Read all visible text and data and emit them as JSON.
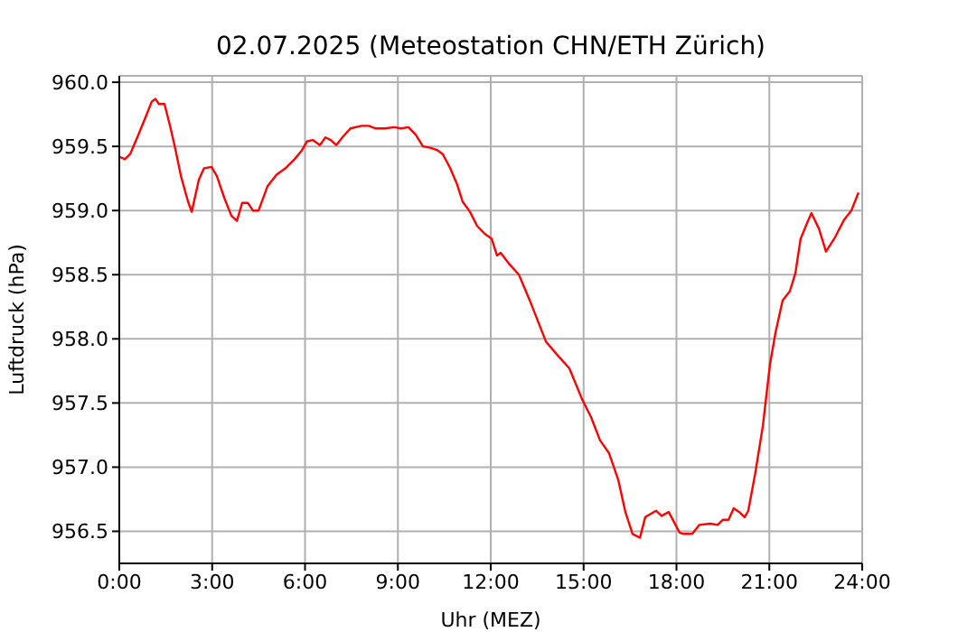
{
  "chart_data": {
    "type": "line",
    "title": "02.07.2025  (Meteostation CHN/ETH Zürich)",
    "xlabel": "Uhr (MEZ)",
    "ylabel": "Luftdruck (hPa)",
    "grid": true,
    "legend": false,
    "marker": "none",
    "line_style": "solid",
    "xlim": [
      0,
      24
    ],
    "xticks": [
      {
        "value": 0,
        "label": "0:00"
      },
      {
        "value": 3,
        "label": "3:00"
      },
      {
        "value": 6,
        "label": "6:00"
      },
      {
        "value": 9,
        "label": "9:00"
      },
      {
        "value": 12,
        "label": "12:00"
      },
      {
        "value": 15,
        "label": "15:00"
      },
      {
        "value": 18,
        "label": "18:00"
      },
      {
        "value": 21,
        "label": "21:00"
      },
      {
        "value": 24,
        "label": "24:00"
      }
    ],
    "ylim": [
      956.25,
      960.05
    ],
    "yticks": [
      {
        "value": 956.5,
        "label": "956.5"
      },
      {
        "value": 957,
        "label": "957.0"
      },
      {
        "value": 957.5,
        "label": "957.5"
      },
      {
        "value": 958,
        "label": "958.0"
      },
      {
        "value": 958.5,
        "label": "958.5"
      },
      {
        "value": 959,
        "label": "959.0"
      },
      {
        "value": 959.5,
        "label": "959.5"
      },
      {
        "value": 960,
        "label": "960.0"
      }
    ],
    "x": [
      0,
      0.18,
      0.35,
      0.58,
      0.82,
      1.05,
      1.17,
      1.28,
      1.46,
      1.64,
      1.81,
      1.99,
      2.22,
      2.34,
      2.57,
      2.74,
      2.98,
      3.15,
      3.39,
      3.62,
      3.8,
      3.97,
      4.15,
      4.32,
      4.5,
      4.79,
      5.08,
      5.37,
      5.66,
      5.9,
      6.07,
      6.25,
      6.48,
      6.66,
      6.83,
      7.01,
      7.24,
      7.47,
      7.82,
      8.06,
      8.29,
      8.58,
      8.88,
      9.11,
      9.34,
      9.58,
      9.81,
      10.04,
      10.28,
      10.45,
      10.69,
      10.92,
      11.09,
      11.33,
      11.56,
      11.8,
      12.03,
      12.2,
      12.32,
      12.61,
      12.91,
      13.26,
      13.78,
      14.13,
      14.54,
      14.95,
      15.24,
      15.53,
      15.82,
      16.12,
      16.35,
      16.58,
      16.82,
      16.99,
      17.34,
      17.52,
      17.75,
      18.1,
      18.22,
      18.51,
      18.74,
      19.09,
      19.33,
      19.5,
      19.68,
      19.85,
      20.03,
      20.2,
      20.32,
      20.55,
      20.79,
      21.02,
      21.2,
      21.43,
      21.66,
      21.84,
      22.01,
      22.25,
      22.36,
      22.6,
      22.83,
      23.12,
      23.42,
      23.65,
      23.88
    ],
    "series": [
      {
        "color": "#ff0000",
        "values": [
          959.42,
          959.4,
          959.44,
          959.57,
          959.71,
          959.85,
          959.87,
          959.83,
          959.83,
          959.66,
          959.48,
          959.27,
          959.07,
          958.99,
          959.24,
          959.33,
          959.34,
          959.27,
          959.1,
          958.96,
          958.92,
          959.06,
          959.06,
          959.0,
          959.0,
          959.19,
          959.28,
          959.33,
          959.4,
          959.47,
          959.54,
          959.55,
          959.51,
          959.57,
          959.55,
          959.51,
          959.58,
          959.64,
          959.66,
          959.66,
          959.64,
          959.64,
          959.65,
          959.64,
          959.65,
          959.59,
          959.5,
          959.49,
          959.47,
          959.44,
          959.33,
          959.2,
          959.07,
          958.99,
          958.88,
          958.82,
          958.78,
          958.65,
          958.67,
          958.58,
          958.5,
          958.3,
          957.98,
          957.88,
          957.77,
          957.53,
          957.39,
          957.21,
          957.11,
          956.9,
          956.65,
          956.48,
          956.45,
          956.61,
          956.66,
          956.62,
          956.65,
          956.49,
          956.48,
          956.48,
          956.55,
          956.56,
          956.55,
          956.59,
          956.59,
          956.68,
          956.65,
          956.61,
          956.66,
          956.96,
          957.32,
          957.8,
          958.05,
          958.3,
          958.37,
          958.51,
          958.78,
          958.92,
          958.98,
          958.86,
          958.68,
          958.79,
          958.93,
          959.0,
          959.14
        ]
      }
    ]
  }
}
